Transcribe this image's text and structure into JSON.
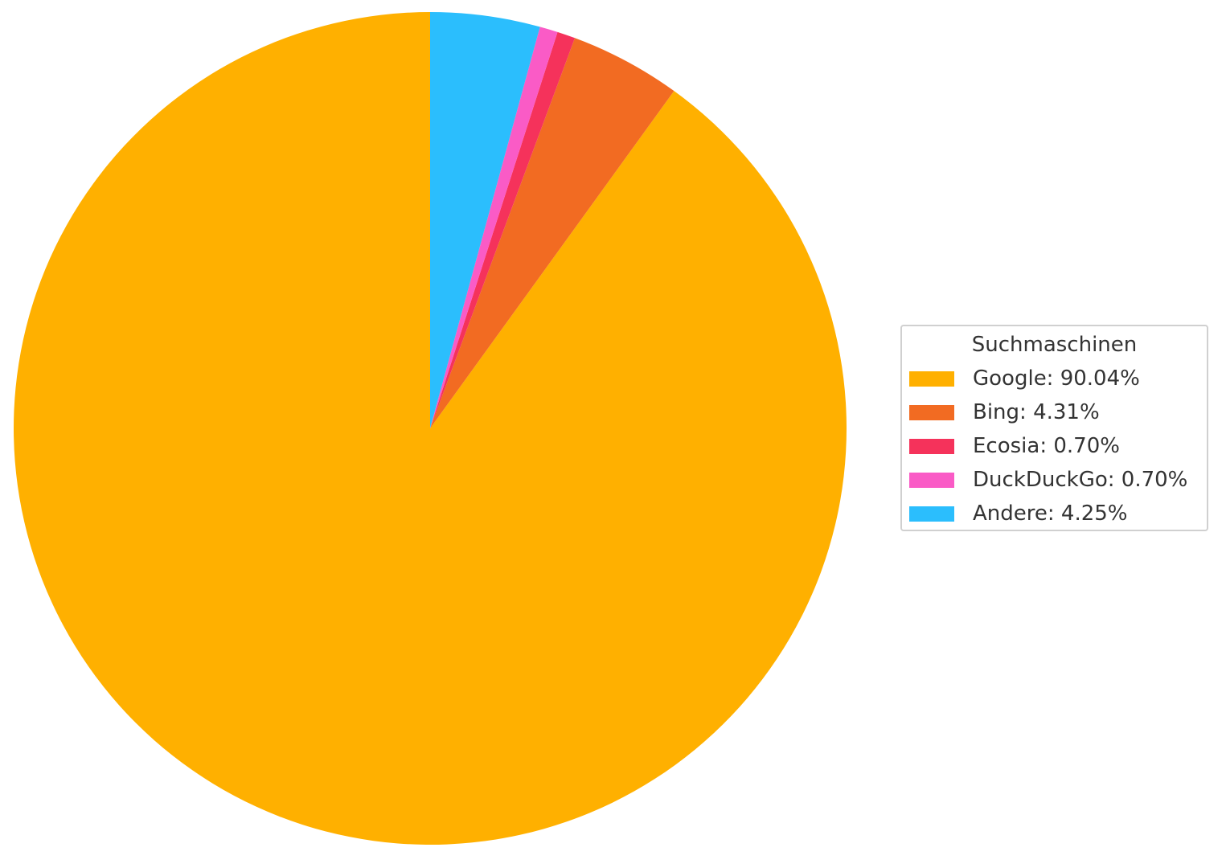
{
  "chart_data": {
    "type": "pie",
    "start_angle_deg": 90,
    "direction": "counterclockwise",
    "slices": [
      {
        "name": "Google",
        "value": 90.04,
        "label": "Google: 90.04%",
        "color": "#FFB000"
      },
      {
        "name": "Bing",
        "value": 4.31,
        "label": "Bing: 4.31%",
        "color": "#F26B22"
      },
      {
        "name": "Ecosia",
        "value": 0.7,
        "label": "Ecosia: 0.70%",
        "color": "#F5325B"
      },
      {
        "name": "DuckDuckGo",
        "value": 0.7,
        "label": "DuckDuckGo: 0.70%",
        "color": "#FA5BC6"
      },
      {
        "name": "Andere",
        "value": 4.25,
        "label": "Andere: 4.25%",
        "color": "#2BBEFD"
      }
    ],
    "legend": {
      "title": "Suchmaschinen",
      "placement": "center-right"
    }
  }
}
